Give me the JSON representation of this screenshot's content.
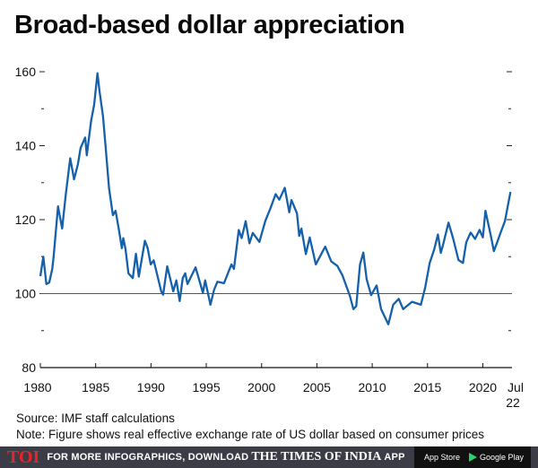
{
  "title": "Broad-based dollar appreciation",
  "chart_data": {
    "type": "line",
    "title": "Broad-based dollar appreciation",
    "xlabel": "",
    "ylabel": "",
    "xlim": [
      1980,
      2022.5
    ],
    "ylim": [
      80,
      160
    ],
    "yticks": [
      80,
      100,
      120,
      140,
      160
    ],
    "yticklabels": [
      "80",
      "100",
      "120",
      "140",
      "160"
    ],
    "yminor": [
      90,
      110,
      130,
      150
    ],
    "xticks": [
      1980,
      1985,
      1990,
      1995,
      2000,
      2005,
      2010,
      2015,
      2020
    ],
    "xticklabels": [
      "1980",
      "1985",
      "1990",
      "1995",
      "2000",
      "2005",
      "2010",
      "2015",
      "2020"
    ],
    "end_label": [
      "Jul",
      "22"
    ],
    "reference_line": 100,
    "grid": false,
    "color": "#1460aa",
    "x": [
      1980.0,
      1980.27,
      1980.54,
      1980.8,
      1981.08,
      1981.2,
      1981.6,
      1981.97,
      1982.3,
      1982.7,
      1983.05,
      1983.4,
      1983.64,
      1984.05,
      1984.2,
      1984.59,
      1984.86,
      1985.16,
      1985.35,
      1985.67,
      1985.94,
      1986.21,
      1986.56,
      1986.8,
      1987.15,
      1987.37,
      1987.5,
      1987.7,
      1987.96,
      1988.36,
      1988.64,
      1988.9,
      1989.45,
      1989.7,
      1989.98,
      1990.25,
      1990.93,
      1991.1,
      1991.47,
      1992.01,
      1992.3,
      1992.6,
      1992.87,
      1993.1,
      1993.3,
      1994.03,
      1994.7,
      1994.9,
      1995.38,
      1995.7,
      1996.0,
      1996.6,
      1997.27,
      1997.5,
      1997.94,
      1998.2,
      1998.56,
      1998.9,
      1999.2,
      1999.8,
      2000.33,
      2000.82,
      2001.27,
      2001.6,
      2002.1,
      2002.5,
      2002.7,
      2003.2,
      2003.4,
      2003.6,
      2004.0,
      2004.35,
      2004.9,
      2005.75,
      2006.3,
      2006.85,
      2007.3,
      2007.98,
      2008.3,
      2008.56,
      2008.9,
      2009.2,
      2009.5,
      2009.9,
      2010.4,
      2010.8,
      2011.46,
      2011.9,
      2012.4,
      2012.8,
      2013.6,
      2014.4,
      2014.8,
      2015.2,
      2015.6,
      2015.94,
      2016.2,
      2016.4,
      2016.9,
      2017.33,
      2017.8,
      2018.2,
      2018.5,
      2018.9,
      2019.3,
      2019.7,
      2020.0,
      2020.24,
      2020.7,
      2021.0,
      2021.3,
      2021.6,
      2022.0,
      2022.5
    ],
    "values": [
      104.7,
      110,
      102.6,
      103,
      106.7,
      110,
      123.6,
      117.6,
      126.9,
      136.6,
      130.9,
      135,
      139.4,
      142.2,
      137.4,
      146.7,
      151.1,
      159.6,
      154.7,
      147.9,
      138.2,
      128.5,
      121.2,
      122.4,
      116.4,
      112.3,
      115,
      112,
      105.5,
      104.2,
      110.8,
      104.6,
      114.3,
      112.3,
      107.9,
      109,
      100.6,
      99.7,
      107.4,
      100.6,
      103.6,
      98,
      104.2,
      105.5,
      102.6,
      107.1,
      100.2,
      103.6,
      97,
      101,
      103.2,
      102.8,
      107.9,
      106.7,
      117.2,
      115,
      119.6,
      113.6,
      116.4,
      114,
      119.6,
      123.2,
      126.9,
      125.4,
      128.6,
      122,
      125.3,
      121.7,
      115.6,
      117.6,
      110.7,
      115.2,
      107.9,
      112.7,
      108.7,
      107.5,
      105,
      99.4,
      95.8,
      96.6,
      107.9,
      111.1,
      103.9,
      99.6,
      102.2,
      95.8,
      91.7,
      97,
      98.6,
      95.8,
      97.8,
      97,
      101.8,
      108.3,
      111.9,
      116,
      111,
      113.1,
      119.2,
      114.8,
      109.1,
      108.3,
      113.9,
      116.5,
      114.8,
      117.2,
      115.2,
      122.4,
      116,
      111.5,
      113.9,
      116.4,
      119.6,
      127.5
    ]
  },
  "source": "Source: IMF staff calculations",
  "note": "Note: Figure shows real effective exchange rate of US dollar based on consumer prices",
  "footer": {
    "logo": "TOI",
    "promo_prefix": "FOR MORE INFOGRAPHICS, DOWNLOAD",
    "brand": "THE TIMES OF INDIA",
    "promo_suffix": "APP",
    "app_store": "App Store",
    "google_play": "Google Play",
    "app_store_icon": "apple-icon",
    "google_play_icon": "play-icon"
  }
}
